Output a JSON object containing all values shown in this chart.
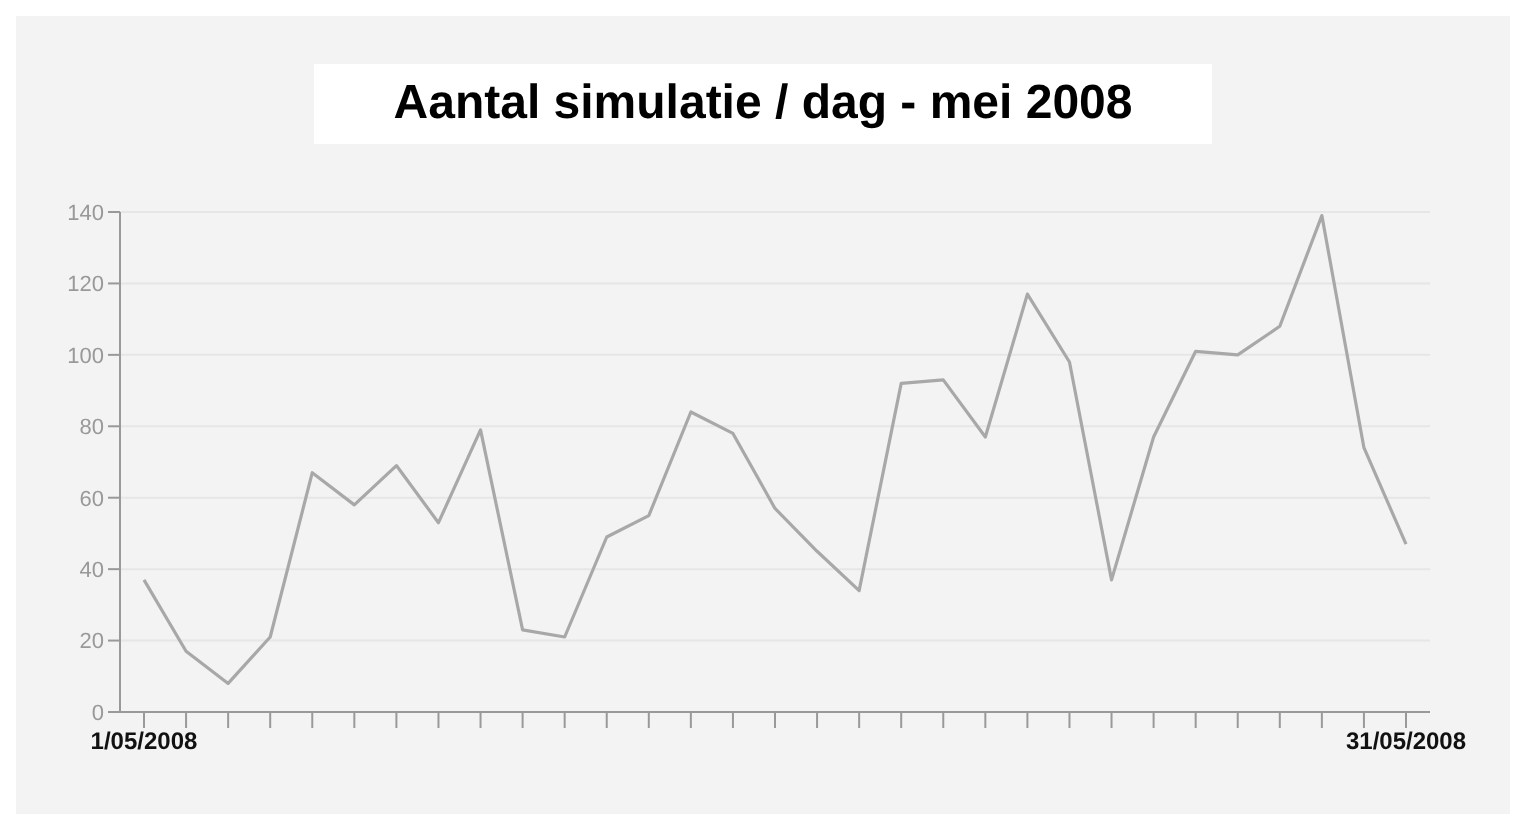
{
  "chart_data": {
    "type": "line",
    "title": "Aantal simulatie / dag - mei 2008",
    "categories": [
      "1/05/2008",
      null,
      null,
      null,
      null,
      null,
      null,
      null,
      null,
      null,
      null,
      null,
      null,
      null,
      null,
      null,
      null,
      null,
      null,
      null,
      null,
      null,
      null,
      null,
      null,
      null,
      null,
      null,
      null,
      null,
      "31/05/2008"
    ],
    "series": [
      {
        "color": "#a8a8a8",
        "values": [
          37,
          17,
          8,
          21,
          67,
          58,
          69,
          53,
          79,
          23,
          21,
          49,
          55,
          84,
          78,
          57,
          45,
          34,
          92,
          93,
          77,
          117,
          98,
          37,
          77,
          101,
          100,
          108,
          139,
          74,
          47
        ]
      }
    ],
    "ylim": [
      0,
      140
    ],
    "yticks": [
      0,
      20,
      40,
      60,
      80,
      100,
      120,
      140
    ],
    "grid": "y",
    "marker": "none",
    "line_style": "solid",
    "legend": false
  }
}
